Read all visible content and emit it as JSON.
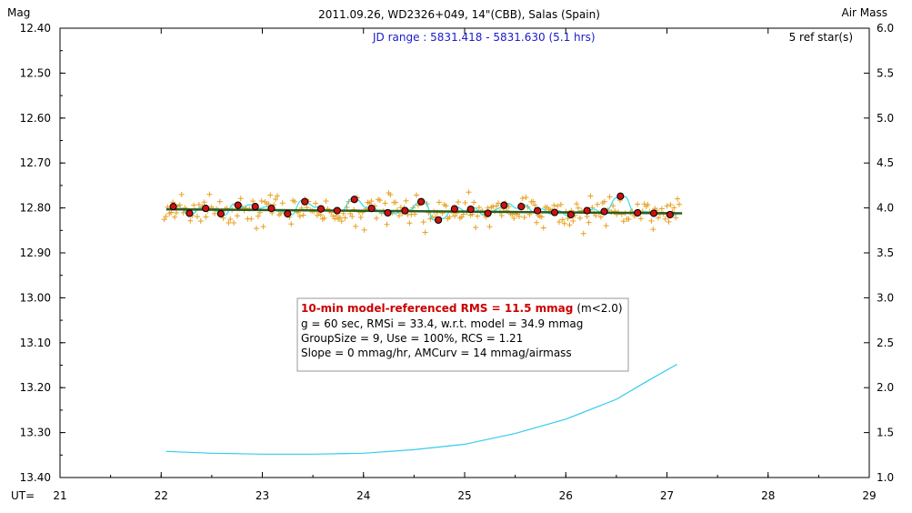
{
  "chart_data": {
    "type": "scatter",
    "title": "2011.09.26, WD2326+049, 14\"(CBB), Salas (Spain)",
    "ylabel_left": "Mag",
    "ylabel_right": "Air Mass",
    "xlabel": "UT=",
    "xlim": [
      21,
      29
    ],
    "ylim_mag": [
      12.4,
      13.4
    ],
    "ylim_airmass": [
      1.0,
      6.0
    ],
    "x_ticks": [
      "21",
      "22",
      "23",
      "24",
      "25",
      "26",
      "27",
      "28",
      "29"
    ],
    "y_ticks_left": [
      "12.40",
      "12.50",
      "12.60",
      "12.70",
      "12.80",
      "12.90",
      "13.00",
      "13.10",
      "13.20",
      "13.30",
      "13.40"
    ],
    "y_ticks_right": [
      "6.0",
      "5.5",
      "5.0",
      "4.5",
      "4.0",
      "3.5",
      "3.0",
      "2.5",
      "2.0",
      "1.5",
      "1.0"
    ],
    "jd_range": "JD range : 5831.418 - 5831.630 (5.1 hrs)",
    "ref_stars": "5 ref star(s)",
    "stats": {
      "headline": "10-min model-referenced RMS = 11.5 mmag",
      "headline_suffix": "(m<2.0)",
      "line1": "g = 60 sec, RMSi = 33.4, w.r.t. model = 34.9 mmag",
      "line2": "GroupSize = 9, Use = 100%, RCS = 1.21",
      "line3": "Slope = 0 mmag/hr, AMCurv = 14 mmag/airmass"
    },
    "grouped_points": {
      "name": "10-min averages",
      "x": [
        22.12,
        22.28,
        22.44,
        22.59,
        22.76,
        22.93,
        23.09,
        23.25,
        23.42,
        23.58,
        23.74,
        23.91,
        24.08,
        24.24,
        24.41,
        24.57,
        24.74,
        24.9,
        25.06,
        25.23,
        25.39,
        25.56,
        25.72,
        25.89,
        26.05,
        26.21,
        26.38,
        26.54,
        26.71,
        26.87,
        27.03
      ],
      "y": [
        12.797,
        12.812,
        12.801,
        12.813,
        12.794,
        12.797,
        12.801,
        12.813,
        12.786,
        12.802,
        12.806,
        12.781,
        12.801,
        12.811,
        12.806,
        12.786,
        12.827,
        12.802,
        12.803,
        12.812,
        12.794,
        12.797,
        12.806,
        12.81,
        12.815,
        12.806,
        12.808,
        12.774,
        12.811,
        12.812,
        12.815
      ]
    },
    "model_line": {
      "name": "model",
      "x": [
        22.05,
        27.15
      ],
      "y": [
        12.803,
        12.812
      ]
    },
    "airmass_curve": {
      "name": "Air Mass",
      "x": [
        22.05,
        22.5,
        23.0,
        23.5,
        24.0,
        24.5,
        25.0,
        25.5,
        26.0,
        26.5,
        26.8,
        27.1
      ],
      "y": [
        1.29,
        1.27,
        1.26,
        1.26,
        1.27,
        1.31,
        1.37,
        1.49,
        1.65,
        1.87,
        2.07,
        2.26
      ]
    },
    "colors": {
      "raw_points": "#e8a020",
      "grouped_points": "#cc1111",
      "model_line": "#2c5e1e",
      "smooth_curve": "#33dde8",
      "airmass_curve": "#33ccee",
      "jd_text": "#1a1acc",
      "stats_head": "#cc0000"
    }
  }
}
